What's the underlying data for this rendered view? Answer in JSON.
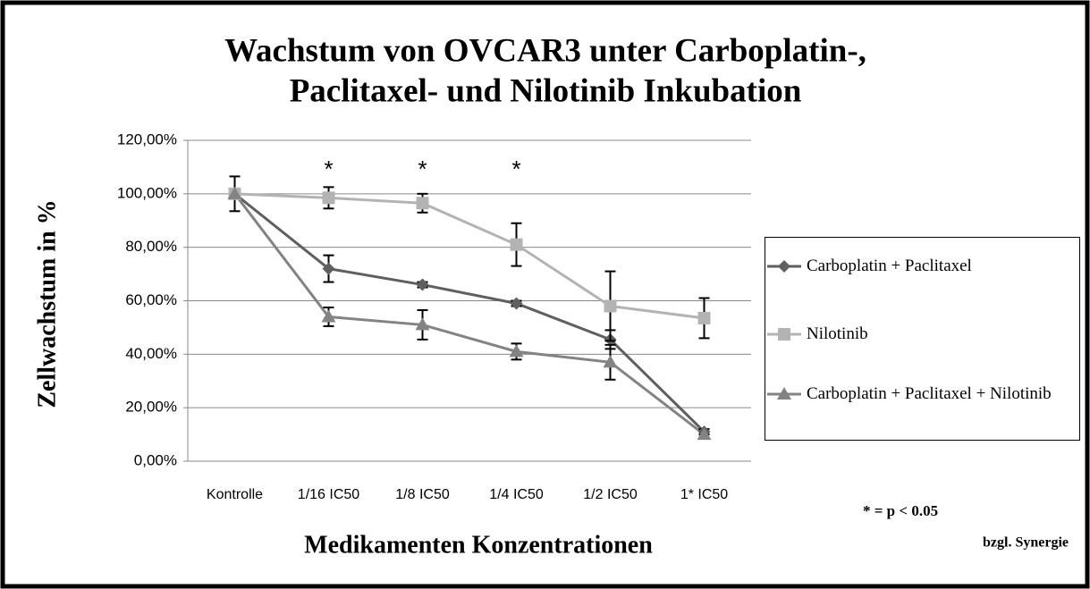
{
  "chart_data": {
    "type": "line",
    "title": [
      "Wachstum von OVCAR3 unter Carboplatin-,",
      "Paclitaxel-  und Nilotinib Inkubation"
    ],
    "y_label": "Zellwachstum in  %",
    "x_label": "Medikamenten Konzentrationen",
    "categories": [
      "Kontrolle",
      "1/16 IC50",
      "1/8 IC50",
      "1/4 IC50",
      "1/2 IC50",
      "1* IC50"
    ],
    "series": [
      {
        "name": "Carboplatin + Paclitaxel",
        "color": "#5f5f5f",
        "marker": "diamond",
        "values": [
          100,
          72,
          66,
          59,
          45.5,
          11
        ],
        "errors": [
          6.5,
          5,
          1,
          1,
          3.5,
          1
        ]
      },
      {
        "name": "Nilotinib",
        "color": "#b3b3b3",
        "marker": "square",
        "values": [
          100,
          98.5,
          96.5,
          81,
          58,
          53.5
        ],
        "errors": [
          0,
          4,
          3.5,
          8,
          13,
          7.5
        ]
      },
      {
        "name": "Carboplatin + Paclitaxel + Nilotinib",
        "color": "#838383",
        "marker": "triangle",
        "values": [
          100,
          54,
          51,
          41,
          37,
          10
        ],
        "errors": [
          0,
          3.5,
          5.5,
          3,
          6.5,
          0
        ]
      }
    ],
    "ylim": [
      0,
      120
    ],
    "yticks": [
      {
        "value": 0,
        "label": "0,00%"
      },
      {
        "value": 20,
        "label": "20,00%"
      },
      {
        "value": 40,
        "label": "40,00%"
      },
      {
        "value": 60,
        "label": "60,00%"
      },
      {
        "value": 80,
        "label": "80,00%"
      },
      {
        "value": 100,
        "label": "100,00%"
      },
      {
        "value": 120,
        "label": "120,00%"
      }
    ],
    "grid": true,
    "legend": "right",
    "annotations": [
      {
        "text": "*",
        "category": 1,
        "y": 110
      },
      {
        "text": "*",
        "category": 2,
        "y": 110
      },
      {
        "text": "*",
        "category": 3,
        "y": 110
      }
    ],
    "footnote": [
      "* = p < 0.05",
      "bzgl. Synergie"
    ]
  }
}
